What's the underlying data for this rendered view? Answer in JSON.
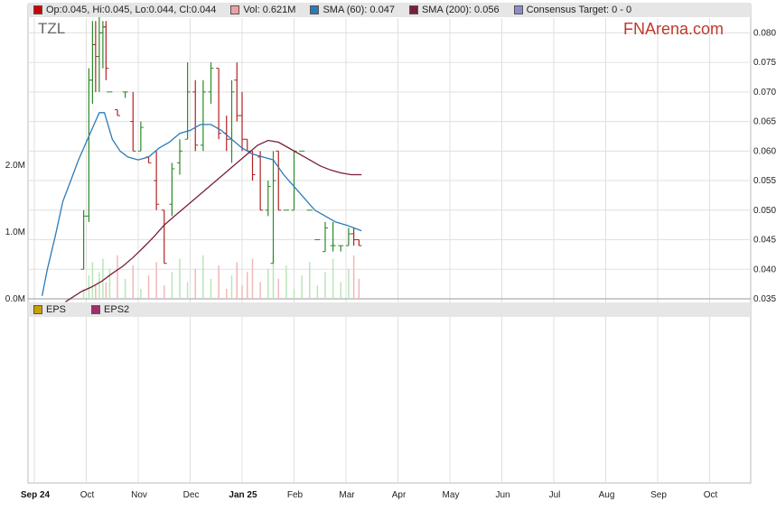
{
  "ticker": "TZL",
  "brand": "FNArena.com",
  "legend_top": [
    {
      "label": "Op:0.045, Hi:0.045, Lo:0.044, Cl:0.044",
      "color": "#cc0000"
    },
    {
      "label": "Vol: 0.621M",
      "color": "#f0a0a0"
    },
    {
      "label": "SMA (60): 0.047",
      "color": "#2b7bb9"
    },
    {
      "label": "SMA (200): 0.056",
      "color": "#7a1f3a"
    },
    {
      "label": "Consensus Target: 0 - 0",
      "color": "#8c8cc8"
    }
  ],
  "legend_bottom": [
    {
      "label": "EPS",
      "color": "#c8a000"
    },
    {
      "label": "EPS2",
      "color": "#a0306a"
    }
  ],
  "colors": {
    "up": "#2a8a2a",
    "down": "#b22222",
    "sma60": "#2b7bb9",
    "sma200": "#7a1f3a",
    "grid": "#e0e0e0",
    "vol_up": "#b8e6b8",
    "vol_down": "#f0b8b8"
  },
  "chart_data": {
    "type": "line",
    "price_axis": {
      "ticks": [
        "0.035",
        "0.040",
        "0.045",
        "0.050",
        "0.055",
        "0.060",
        "0.065",
        "0.070",
        "0.075",
        "0.080"
      ],
      "ylim": [
        0.035,
        0.0825
      ]
    },
    "volume_axis": {
      "ticks": [
        "0.0M",
        "1.0M",
        "2.0M"
      ],
      "ylim": [
        0,
        4.2
      ]
    },
    "x_labels": [
      "Sep 24",
      "Oct",
      "Nov",
      "Dec",
      "Jan 25",
      "Feb",
      "Mar",
      "Apr",
      "May",
      "Jun",
      "Jul",
      "Aug",
      "Sep",
      "Oct"
    ],
    "x_labels_bold": [
      "Sep 24",
      "Jan 25"
    ],
    "sma60": [
      [
        0.15,
        0.0355
      ],
      [
        0.25,
        0.04
      ],
      [
        0.4,
        0.0455
      ],
      [
        0.55,
        0.0515
      ],
      [
        0.7,
        0.055
      ],
      [
        0.85,
        0.0585
      ],
      [
        1.0,
        0.0615
      ],
      [
        1.15,
        0.0645
      ],
      [
        1.25,
        0.0665
      ],
      [
        1.35,
        0.0665
      ],
      [
        1.5,
        0.062
      ],
      [
        1.65,
        0.06
      ],
      [
        1.8,
        0.059
      ],
      [
        2.0,
        0.0585
      ],
      [
        2.2,
        0.059
      ],
      [
        2.4,
        0.0605
      ],
      [
        2.6,
        0.0615
      ],
      [
        2.8,
        0.063
      ],
      [
        3.0,
        0.0635
      ],
      [
        3.2,
        0.0645
      ],
      [
        3.4,
        0.0645
      ],
      [
        3.6,
        0.0635
      ],
      [
        3.8,
        0.062
      ],
      [
        4.0,
        0.0605
      ],
      [
        4.2,
        0.0595
      ],
      [
        4.4,
        0.059
      ],
      [
        4.6,
        0.0585
      ],
      [
        4.8,
        0.056
      ],
      [
        5.0,
        0.054
      ],
      [
        5.2,
        0.052
      ],
      [
        5.4,
        0.05
      ],
      [
        5.6,
        0.049
      ],
      [
        5.8,
        0.048
      ],
      [
        6.0,
        0.0475
      ],
      [
        6.15,
        0.047
      ],
      [
        6.3,
        0.0465
      ]
    ],
    "sma200": [
      [
        0.6,
        0.0345
      ],
      [
        0.9,
        0.0362
      ],
      [
        1.1,
        0.037
      ],
      [
        1.3,
        0.038
      ],
      [
        1.5,
        0.0393
      ],
      [
        1.7,
        0.0405
      ],
      [
        1.9,
        0.042
      ],
      [
        2.1,
        0.0437
      ],
      [
        2.3,
        0.0455
      ],
      [
        2.5,
        0.0475
      ],
      [
        2.7,
        0.049
      ],
      [
        2.9,
        0.0505
      ],
      [
        3.1,
        0.052
      ],
      [
        3.3,
        0.0535
      ],
      [
        3.5,
        0.055
      ],
      [
        3.7,
        0.0565
      ],
      [
        3.9,
        0.058
      ],
      [
        4.1,
        0.0595
      ],
      [
        4.3,
        0.061
      ],
      [
        4.5,
        0.0618
      ],
      [
        4.7,
        0.0615
      ],
      [
        4.9,
        0.0605
      ],
      [
        5.1,
        0.0595
      ],
      [
        5.3,
        0.0585
      ],
      [
        5.5,
        0.0575
      ],
      [
        5.7,
        0.0568
      ],
      [
        5.9,
        0.0563
      ],
      [
        6.1,
        0.056
      ],
      [
        6.3,
        0.056
      ]
    ],
    "ohlc": [
      [
        0.95,
        0.04,
        0.05,
        0.04,
        0.049
      ],
      [
        1.05,
        0.049,
        0.074,
        0.048,
        0.072
      ],
      [
        1.12,
        0.072,
        0.082,
        0.068,
        0.078
      ],
      [
        1.18,
        0.078,
        0.082,
        0.07,
        0.076
      ],
      [
        1.25,
        0.076,
        0.083,
        0.07,
        0.08
      ],
      [
        1.32,
        0.08,
        0.082,
        0.074,
        0.081
      ],
      [
        1.38,
        0.081,
        0.082,
        0.072,
        0.074
      ],
      [
        1.45,
        0.07,
        0.07,
        0.07,
        0.07
      ],
      [
        1.6,
        0.067,
        0.067,
        0.066,
        0.066
      ],
      [
        1.75,
        0.07,
        0.07,
        0.069,
        0.07
      ],
      [
        1.9,
        0.065,
        0.07,
        0.06,
        0.06
      ],
      [
        2.05,
        0.06,
        0.065,
        0.06,
        0.064
      ],
      [
        2.2,
        0.059,
        0.059,
        0.058,
        0.058
      ],
      [
        2.35,
        0.055,
        0.06,
        0.05,
        0.051
      ],
      [
        2.5,
        0.05,
        0.05,
        0.041,
        0.041
      ],
      [
        2.65,
        0.051,
        0.058,
        0.049,
        0.057
      ],
      [
        2.8,
        0.058,
        0.062,
        0.056,
        0.06
      ],
      [
        2.95,
        0.062,
        0.075,
        0.062,
        0.07
      ],
      [
        3.1,
        0.07,
        0.072,
        0.06,
        0.061
      ],
      [
        3.25,
        0.061,
        0.072,
        0.06,
        0.07
      ],
      [
        3.4,
        0.07,
        0.075,
        0.068,
        0.074
      ],
      [
        3.55,
        0.074,
        0.074,
        0.062,
        0.063
      ],
      [
        3.7,
        0.063,
        0.066,
        0.06,
        0.062
      ],
      [
        3.8,
        0.062,
        0.072,
        0.058,
        0.07
      ],
      [
        3.9,
        0.072,
        0.075,
        0.065,
        0.066
      ],
      [
        4.0,
        0.066,
        0.07,
        0.06,
        0.062
      ],
      [
        4.1,
        0.062,
        0.062,
        0.06,
        0.06
      ],
      [
        4.2,
        0.06,
        0.06,
        0.055,
        0.056
      ],
      [
        4.35,
        0.059,
        0.06,
        0.05,
        0.05
      ],
      [
        4.5,
        0.05,
        0.055,
        0.049,
        0.054
      ],
      [
        4.6,
        0.041,
        0.06,
        0.041,
        0.055
      ],
      [
        4.7,
        0.06,
        0.06,
        0.05,
        0.05
      ],
      [
        4.85,
        0.05,
        0.05,
        0.05,
        0.05
      ],
      [
        5.0,
        0.05,
        0.06,
        0.05,
        0.06
      ],
      [
        5.15,
        0.06,
        0.06,
        0.06,
        0.06
      ],
      [
        5.3,
        0.05,
        0.05,
        0.05,
        0.05
      ],
      [
        5.45,
        0.045,
        0.045,
        0.045,
        0.045
      ],
      [
        5.6,
        0.043,
        0.048,
        0.043,
        0.047
      ],
      [
        5.75,
        0.044,
        0.048,
        0.043,
        0.044
      ],
      [
        5.9,
        0.044,
        0.044,
        0.043,
        0.044
      ],
      [
        6.05,
        0.044,
        0.047,
        0.044,
        0.046
      ],
      [
        6.15,
        0.046,
        0.047,
        0.044,
        0.045
      ],
      [
        6.25,
        0.045,
        0.045,
        0.044,
        0.044
      ]
    ]
  }
}
